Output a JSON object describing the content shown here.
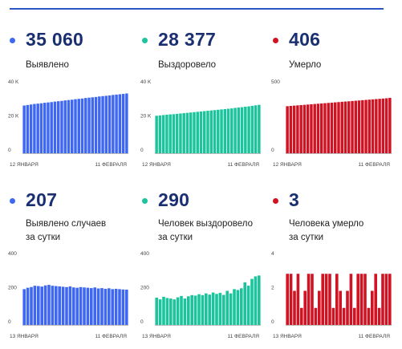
{
  "colors": {
    "blue": "#3f68f2",
    "green": "#1bc49c",
    "red": "#cf1322",
    "title": "#1a2f72"
  },
  "cards": [
    {
      "id": "detected-total",
      "value": "35 060",
      "label_lines": [
        "Выявлено"
      ],
      "color": "#3f68f2",
      "chart": {
        "ytick_labels": [
          "40 K",
          "20 K",
          "0"
        ],
        "ymax": 40000,
        "x_start": "12 ЯНВАРЯ",
        "x_end": "11 ФЕВРАЛЯ",
        "values": [
          28000,
          28300,
          28600,
          28900,
          29100,
          29300,
          29600,
          29800,
          30000,
          30300,
          30500,
          30700,
          31000,
          31200,
          31400,
          31700,
          31900,
          32100,
          32400,
          32600,
          32800,
          33000,
          33300,
          33500,
          33700,
          33900,
          34200,
          34400,
          34600,
          34800,
          35060
        ]
      }
    },
    {
      "id": "recovered-total",
      "value": "28 377",
      "label_lines": [
        "Выздоровело"
      ],
      "color": "#1bc49c",
      "chart": {
        "ytick_labels": [
          "40 K",
          "20 K",
          "0"
        ],
        "ymax": 40000,
        "x_start": "12 ЯНВАРЯ",
        "x_end": "11 ФЕВРАЛЯ",
        "values": [
          22000,
          22200,
          22400,
          22600,
          22800,
          22900,
          23100,
          23300,
          23500,
          23700,
          23900,
          24100,
          24300,
          24500,
          24700,
          24900,
          25100,
          25300,
          25500,
          25700,
          25900,
          26100,
          26300,
          26600,
          26800,
          27000,
          27300,
          27500,
          27800,
          28100,
          28377
        ]
      }
    },
    {
      "id": "died-total",
      "value": "406",
      "label_lines": [
        "Умерло"
      ],
      "color": "#cf1322",
      "chart": {
        "ytick_labels": [
          "500",
          "0"
        ],
        "ymax": 500,
        "x_start": "12 ЯНВАРЯ",
        "x_end": "11 ФЕВРАЛЯ",
        "values": [
          345,
          347,
          349,
          351,
          353,
          355,
          357,
          359,
          361,
          363,
          365,
          367,
          369,
          371,
          373,
          375,
          377,
          379,
          381,
          383,
          385,
          387,
          389,
          391,
          393,
          395,
          397,
          399,
          401,
          403,
          406
        ]
      }
    },
    {
      "id": "detected-daily",
      "value": "207",
      "label_lines": [
        "Выявлено случаев",
        "за сутки"
      ],
      "color": "#3f68f2",
      "chart": {
        "ytick_labels": [
          "400",
          "200",
          "0"
        ],
        "ymax": 400,
        "x_start": "13 ЯНВАРЯ",
        "x_end": "11 ФЕВРАЛЯ",
        "values": [
          210,
          218,
          222,
          230,
          228,
          225,
          232,
          235,
          230,
          228,
          226,
          224,
          222,
          226,
          220,
          218,
          222,
          220,
          218,
          216,
          220,
          214,
          216,
          212,
          215,
          210,
          212,
          210,
          208,
          207
        ]
      }
    },
    {
      "id": "recovered-daily",
      "value": "290",
      "label_lines": [
        "Человек выздоровело",
        "за сутки"
      ],
      "color": "#1bc49c",
      "chart": {
        "ytick_labels": [
          "400",
          "200",
          "0"
        ],
        "ymax": 400,
        "x_start": "13 ЯНВАРЯ",
        "x_end": "11 ФЕВРАЛЯ",
        "values": [
          160,
          150,
          165,
          158,
          155,
          150,
          162,
          170,
          155,
          168,
          175,
          172,
          180,
          175,
          185,
          178,
          190,
          182,
          188,
          176,
          200,
          185,
          210,
          205,
          215,
          250,
          230,
          270,
          285,
          290
        ]
      }
    },
    {
      "id": "died-daily",
      "value": "3",
      "label_lines": [
        "Человека умерло",
        "за сутки"
      ],
      "color": "#cf1322",
      "chart": {
        "ytick_labels": [
          "4",
          "2",
          "0"
        ],
        "ymax": 4,
        "x_start": "13 ЯНВАРЯ",
        "x_end": "11 ФЕВРАЛЯ",
        "values": [
          3,
          3,
          2,
          3,
          1,
          2,
          3,
          3,
          1,
          2,
          3,
          3,
          3,
          1,
          3,
          2,
          1,
          2,
          3,
          1,
          3,
          3,
          3,
          1,
          2,
          3,
          1,
          3,
          3,
          3
        ]
      }
    }
  ]
}
